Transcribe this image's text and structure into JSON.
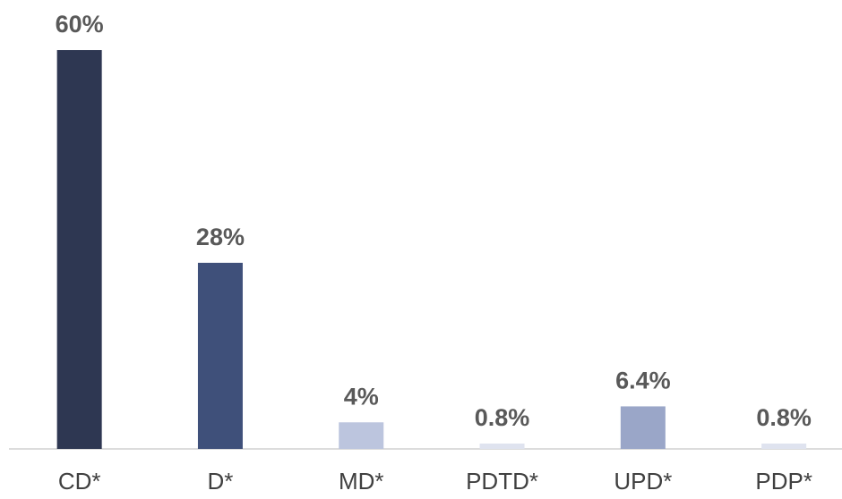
{
  "chart_data": {
    "type": "bar",
    "categories": [
      "CD*",
      "D*",
      "MD*",
      "PDTD*",
      "UPD*",
      "PDP*"
    ],
    "values": [
      60,
      28,
      4,
      0.8,
      6.4,
      0.8
    ],
    "value_labels": [
      "60%",
      "28%",
      "4%",
      "0.8%",
      "6.4%",
      "0.8%"
    ],
    "colors": [
      "#2e3752",
      "#3f507a",
      "#bcc5de",
      "#dfe3ef",
      "#9aa6c8",
      "#dfe3ef"
    ]
  }
}
